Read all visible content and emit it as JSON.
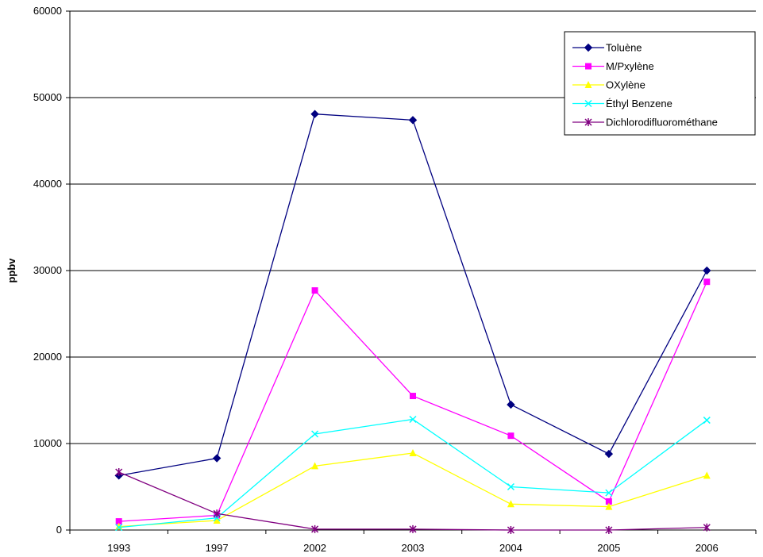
{
  "chart_data": {
    "type": "line",
    "title": "",
    "xlabel": "",
    "ylabel": "ppbv",
    "categories": [
      "1993",
      "1997",
      "2002",
      "2003",
      "2004",
      "2005",
      "2006"
    ],
    "ylim": [
      0,
      60000
    ],
    "yticks": [
      "0",
      "10000",
      "20000",
      "30000",
      "40000",
      "50000",
      "60000"
    ],
    "grid": true,
    "legend_position": "top-right",
    "series": [
      {
        "name": "Toluène",
        "color": "#000080",
        "marker": "diamond",
        "values": [
          6300,
          8300,
          48100,
          47400,
          14500,
          8800,
          30000
        ]
      },
      {
        "name": "M/Pxylène",
        "color": "#FF00FF",
        "marker": "square",
        "values": [
          1000,
          1700,
          27700,
          15500,
          10900,
          3300,
          28700
        ]
      },
      {
        "name": "OXylène",
        "color": "#FFFF00",
        "marker": "triangle",
        "values": [
          400,
          1100,
          7400,
          8900,
          3000,
          2700,
          6300
        ]
      },
      {
        "name": "Éthyl Benzene",
        "color": "#00FFFF",
        "marker": "x",
        "values": [
          300,
          1400,
          11100,
          12800,
          5000,
          4300,
          12700
        ]
      },
      {
        "name": "Dichlorodifluorométhane",
        "color": "#800080",
        "marker": "star",
        "values": [
          6700,
          1900,
          100,
          100,
          0,
          0,
          300
        ]
      }
    ]
  }
}
